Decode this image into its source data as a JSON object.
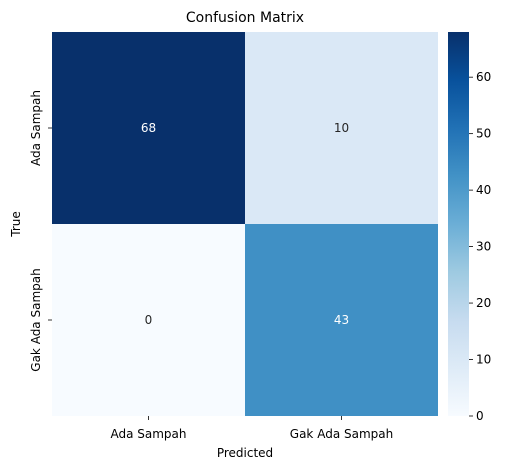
{
  "chart_data": {
    "type": "heatmap",
    "title": "Confusion Matrix",
    "xlabel": "Predicted",
    "ylabel": "True",
    "x_categories": [
      "Ada Sampah",
      "Gak Ada Sampah"
    ],
    "y_categories": [
      "Ada Sampah",
      "Gak Ada Sampah"
    ],
    "values": [
      [
        68,
        10
      ],
      [
        0,
        43
      ]
    ],
    "colormap": "Blues",
    "colorbar": {
      "min": 0,
      "max": 68,
      "ticks": [
        0,
        10,
        20,
        30,
        40,
        50,
        60
      ]
    },
    "grid": false
  }
}
